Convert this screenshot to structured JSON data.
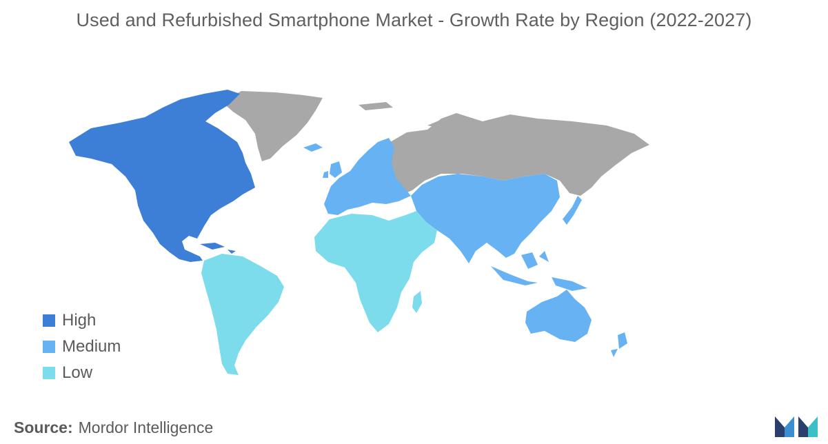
{
  "title": "Used and Refurbished Smartphone Market - Growth Rate by Region (2022-2027)",
  "legend": [
    {
      "label": "High",
      "color": "#3d7fd6"
    },
    {
      "label": "Medium",
      "color": "#67b2f3"
    },
    {
      "label": "Low",
      "color": "#7ddcec"
    }
  ],
  "no_data_color": "#a8a8a8",
  "regions": [
    {
      "name": "North America",
      "level": "High"
    },
    {
      "name": "Europe",
      "level": "Medium"
    },
    {
      "name": "Asia-Pacific",
      "level": "Medium"
    },
    {
      "name": "South America",
      "level": "Low"
    },
    {
      "name": "Middle East and Africa",
      "level": "Low"
    }
  ],
  "source": {
    "label": "Source:",
    "value": "Mordor Intelligence"
  },
  "logo_icon": "mordor-intelligence-logo-icon"
}
